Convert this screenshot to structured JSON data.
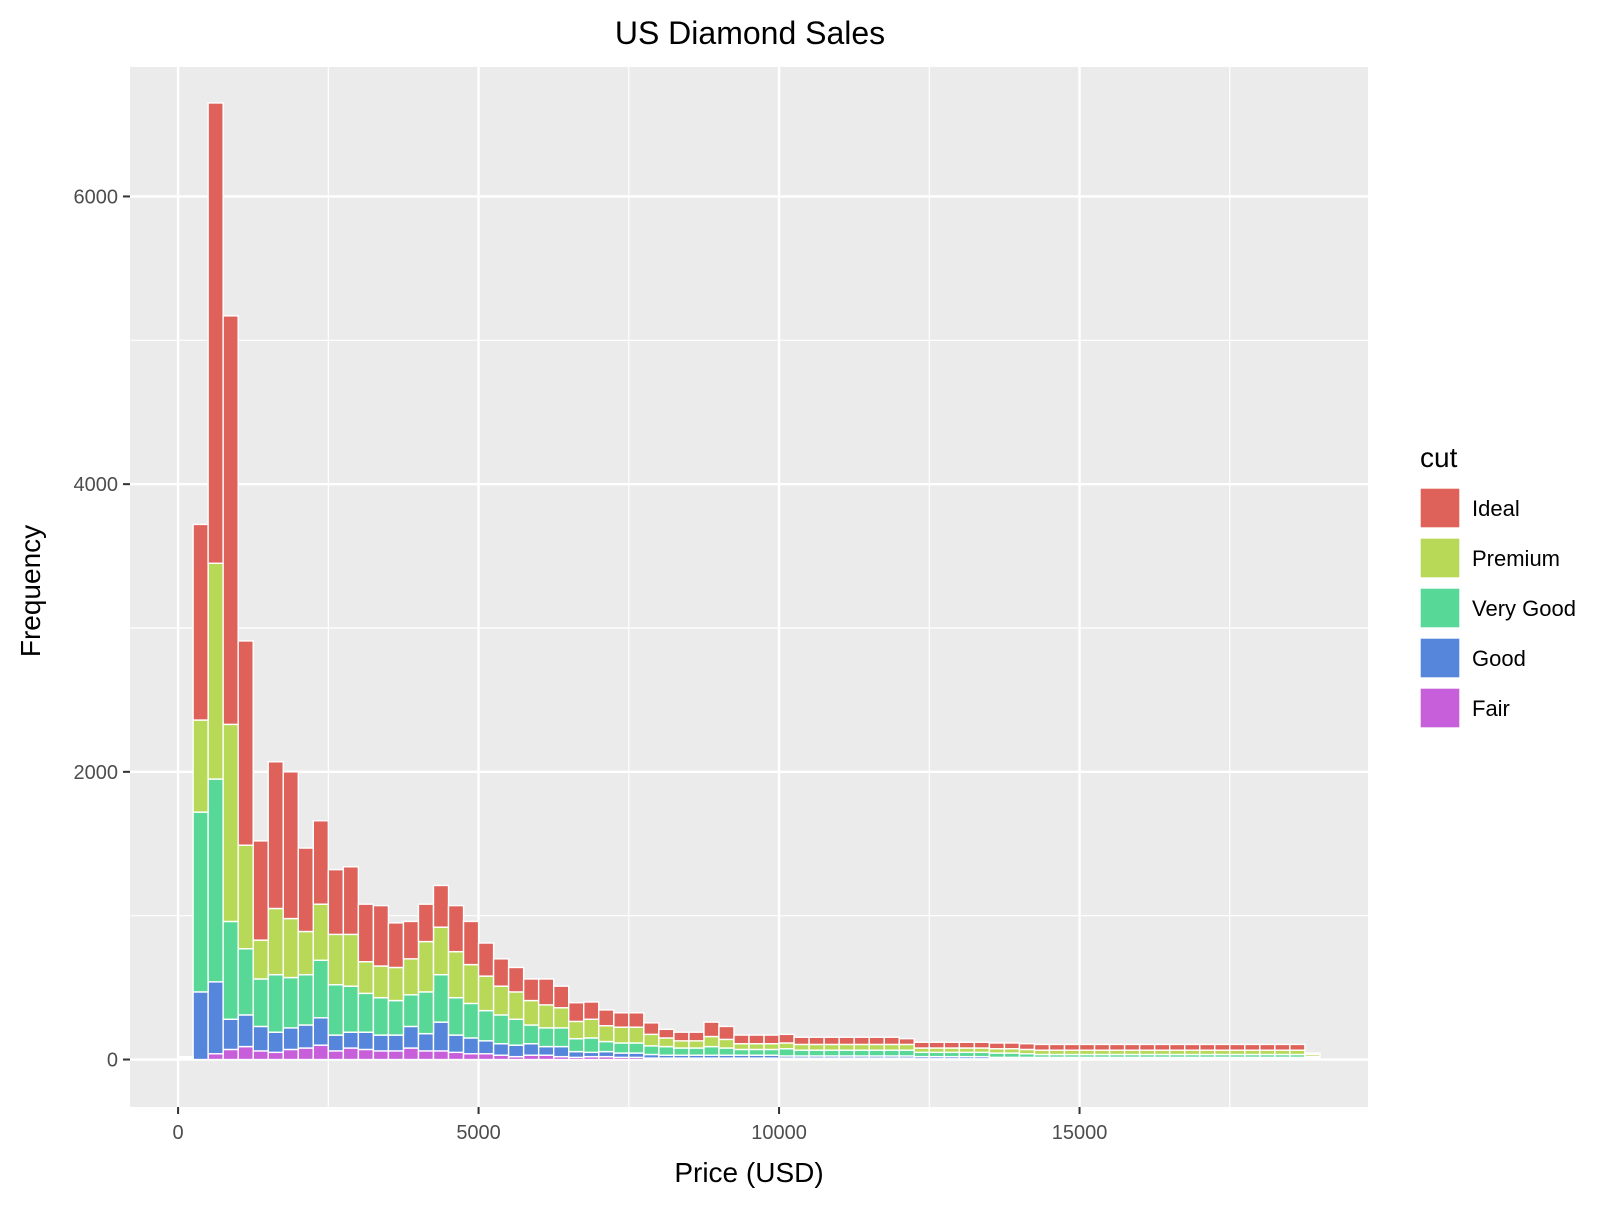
{
  "chart_data": {
    "type": "bar",
    "stacked": true,
    "title": "US Diamond Sales",
    "xlabel": "Price (USD)",
    "ylabel": "Frequency",
    "xlim": [
      -800,
      19800
    ],
    "ylim": [
      -330,
      6900
    ],
    "x_ticks": [
      0,
      5000,
      10000,
      15000
    ],
    "x_tick_labels": [
      "0",
      "5000",
      "10000",
      "15000"
    ],
    "y_ticks": [
      0,
      2000,
      4000,
      6000
    ],
    "y_tick_labels": [
      "0",
      "2000",
      "4000",
      "6000"
    ],
    "grid": true,
    "legend": {
      "title": "cut",
      "position": "right"
    },
    "bin_width": 250,
    "bin_centers": [
      125,
      375,
      625,
      875,
      1125,
      1375,
      1625,
      1875,
      2125,
      2375,
      2625,
      2875,
      3125,
      3375,
      3625,
      3875,
      4125,
      4375,
      4625,
      4875,
      5125,
      5375,
      5625,
      5875,
      6125,
      6375,
      6625,
      6875,
      7125,
      7375,
      7625,
      7875,
      8125,
      8375,
      8625,
      8875,
      9125,
      9375,
      9625,
      9875,
      10125,
      10375,
      10625,
      10875,
      11125,
      11375,
      11625,
      11875,
      12125,
      12375,
      12625,
      12875,
      13125,
      13375,
      13625,
      13875,
      14125,
      14375,
      14625,
      14875,
      15125,
      15375,
      15625,
      15875,
      16125,
      16375,
      16625,
      16875,
      17125,
      17375,
      17625,
      17875,
      18125,
      18375,
      18625,
      18875
    ],
    "series": [
      {
        "name": "Fair",
        "color": "#C75FDB",
        "values": [
          0,
          0,
          40,
          70,
          90,
          60,
          50,
          70,
          80,
          100,
          60,
          80,
          70,
          60,
          60,
          80,
          60,
          60,
          50,
          40,
          40,
          30,
          20,
          30,
          30,
          20,
          15,
          20,
          20,
          15,
          15,
          10,
          10,
          10,
          10,
          10,
          10,
          10,
          10,
          10,
          10,
          10,
          10,
          10,
          10,
          10,
          10,
          10,
          10,
          5,
          5,
          5,
          5,
          5,
          5,
          5,
          5,
          5,
          5,
          5,
          5,
          5,
          5,
          5,
          5,
          5,
          5,
          5,
          5,
          5,
          5,
          5,
          5,
          5,
          5,
          5
        ]
      },
      {
        "name": "Good",
        "color": "#5686DB",
        "values": [
          5,
          470,
          500,
          210,
          220,
          170,
          140,
          150,
          160,
          190,
          110,
          110,
          120,
          110,
          110,
          150,
          120,
          200,
          120,
          110,
          90,
          80,
          80,
          80,
          60,
          70,
          40,
          30,
          35,
          30,
          30,
          25,
          20,
          20,
          20,
          20,
          20,
          20,
          20,
          20,
          15,
          15,
          15,
          15,
          15,
          15,
          15,
          15,
          15,
          15,
          15,
          15,
          15,
          15,
          10,
          10,
          10,
          10,
          10,
          10,
          10,
          10,
          10,
          10,
          10,
          10,
          10,
          10,
          10,
          10,
          10,
          10,
          10,
          10,
          10,
          5
        ]
      },
      {
        "name": "Very Good",
        "color": "#58D896",
        "values": [
          5,
          1250,
          1410,
          680,
          460,
          330,
          400,
          350,
          350,
          400,
          350,
          320,
          270,
          260,
          240,
          220,
          290,
          330,
          260,
          240,
          210,
          200,
          180,
          130,
          130,
          130,
          90,
          100,
          70,
          70,
          70,
          60,
          60,
          50,
          50,
          60,
          50,
          40,
          40,
          40,
          50,
          40,
          40,
          40,
          40,
          40,
          40,
          40,
          40,
          30,
          30,
          30,
          30,
          30,
          30,
          30,
          25,
          20,
          20,
          20,
          20,
          20,
          20,
          20,
          20,
          20,
          20,
          20,
          20,
          20,
          20,
          20,
          20,
          20,
          20,
          10
        ]
      },
      {
        "name": "Premium",
        "color": "#B8D957",
        "values": [
          5,
          640,
          1500,
          1370,
          720,
          270,
          460,
          410,
          300,
          390,
          350,
          360,
          220,
          220,
          230,
          250,
          350,
          330,
          320,
          270,
          240,
          200,
          190,
          170,
          160,
          140,
          120,
          130,
          110,
          110,
          110,
          80,
          60,
          50,
          50,
          70,
          60,
          40,
          40,
          40,
          40,
          40,
          40,
          40,
          40,
          40,
          40,
          40,
          40,
          30,
          30,
          30,
          30,
          30,
          30,
          30,
          30,
          30,
          30,
          30,
          30,
          30,
          30,
          30,
          30,
          30,
          30,
          30,
          30,
          30,
          30,
          30,
          30,
          30,
          30,
          15
        ]
      },
      {
        "name": "Ideal",
        "color": "#DE6259",
        "values": [
          5,
          1360,
          3200,
          2840,
          1420,
          690,
          1020,
          1020,
          580,
          580,
          450,
          470,
          400,
          420,
          310,
          260,
          260,
          290,
          320,
          300,
          230,
          190,
          170,
          150,
          180,
          150,
          130,
          120,
          110,
          100,
          100,
          80,
          60,
          60,
          60,
          100,
          90,
          60,
          60,
          60,
          60,
          50,
          50,
          50,
          50,
          50,
          50,
          50,
          40,
          40,
          40,
          40,
          40,
          40,
          40,
          40,
          40,
          40,
          40,
          40,
          40,
          40,
          40,
          40,
          40,
          40,
          40,
          40,
          40,
          40,
          40,
          40,
          40,
          40,
          40,
          10
        ]
      }
    ],
    "legend_order": [
      "Ideal",
      "Premium",
      "Very Good",
      "Good",
      "Fair"
    ]
  }
}
